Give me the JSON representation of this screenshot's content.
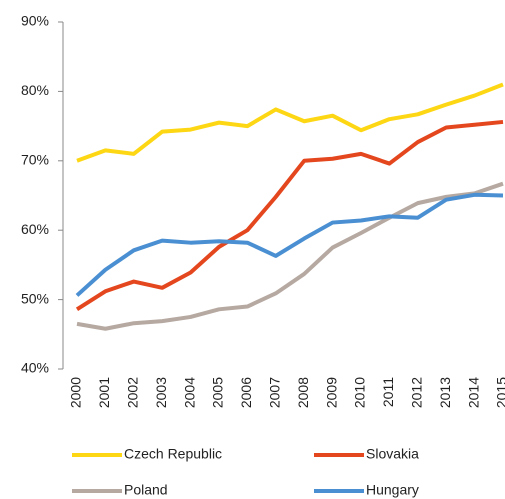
{
  "chart_data": {
    "type": "line",
    "x": [
      "2000",
      "2001",
      "2002",
      "2003",
      "2004",
      "2005",
      "2006",
      "2007",
      "2008",
      "2009",
      "2010",
      "2011",
      "2012",
      "2013",
      "2014",
      "2015"
    ],
    "series": [
      {
        "name": "Czech Republic",
        "color": "#fdd614",
        "values": [
          70.0,
          71.5,
          71.0,
          74.2,
          74.5,
          75.5,
          75.0,
          77.4,
          75.7,
          76.5,
          74.4,
          76.0,
          76.7,
          78.1,
          79.4,
          81.0
        ]
      },
      {
        "name": "Slovakia",
        "color": "#e4461e",
        "values": [
          48.6,
          51.2,
          52.6,
          51.7,
          53.9,
          57.6,
          60.0,
          64.8,
          70.0,
          70.3,
          71.0,
          69.6,
          72.7,
          74.8,
          75.2,
          75.6
        ]
      },
      {
        "name": "Poland",
        "color": "#b6a9a1",
        "values": [
          46.5,
          45.8,
          46.6,
          46.9,
          47.5,
          48.6,
          49.0,
          50.9,
          53.7,
          57.5,
          59.6,
          61.8,
          63.9,
          64.8,
          65.3,
          66.7
        ]
      },
      {
        "name": "Hungary",
        "color": "#4a8fd2",
        "values": [
          50.6,
          54.3,
          57.1,
          58.5,
          58.2,
          58.4,
          58.2,
          56.3,
          58.8,
          61.1,
          61.4,
          62.0,
          61.8,
          64.4,
          65.1,
          65.0
        ]
      }
    ],
    "ylim": [
      40,
      90
    ],
    "yticks": [
      {
        "value": 40,
        "label": "40%"
      },
      {
        "value": 50,
        "label": "50%"
      },
      {
        "value": 60,
        "label": "60%"
      },
      {
        "value": 70,
        "label": "70%"
      },
      {
        "value": 80,
        "label": "80%"
      },
      {
        "value": 90,
        "label": "90%"
      }
    ],
    "grid": false
  }
}
